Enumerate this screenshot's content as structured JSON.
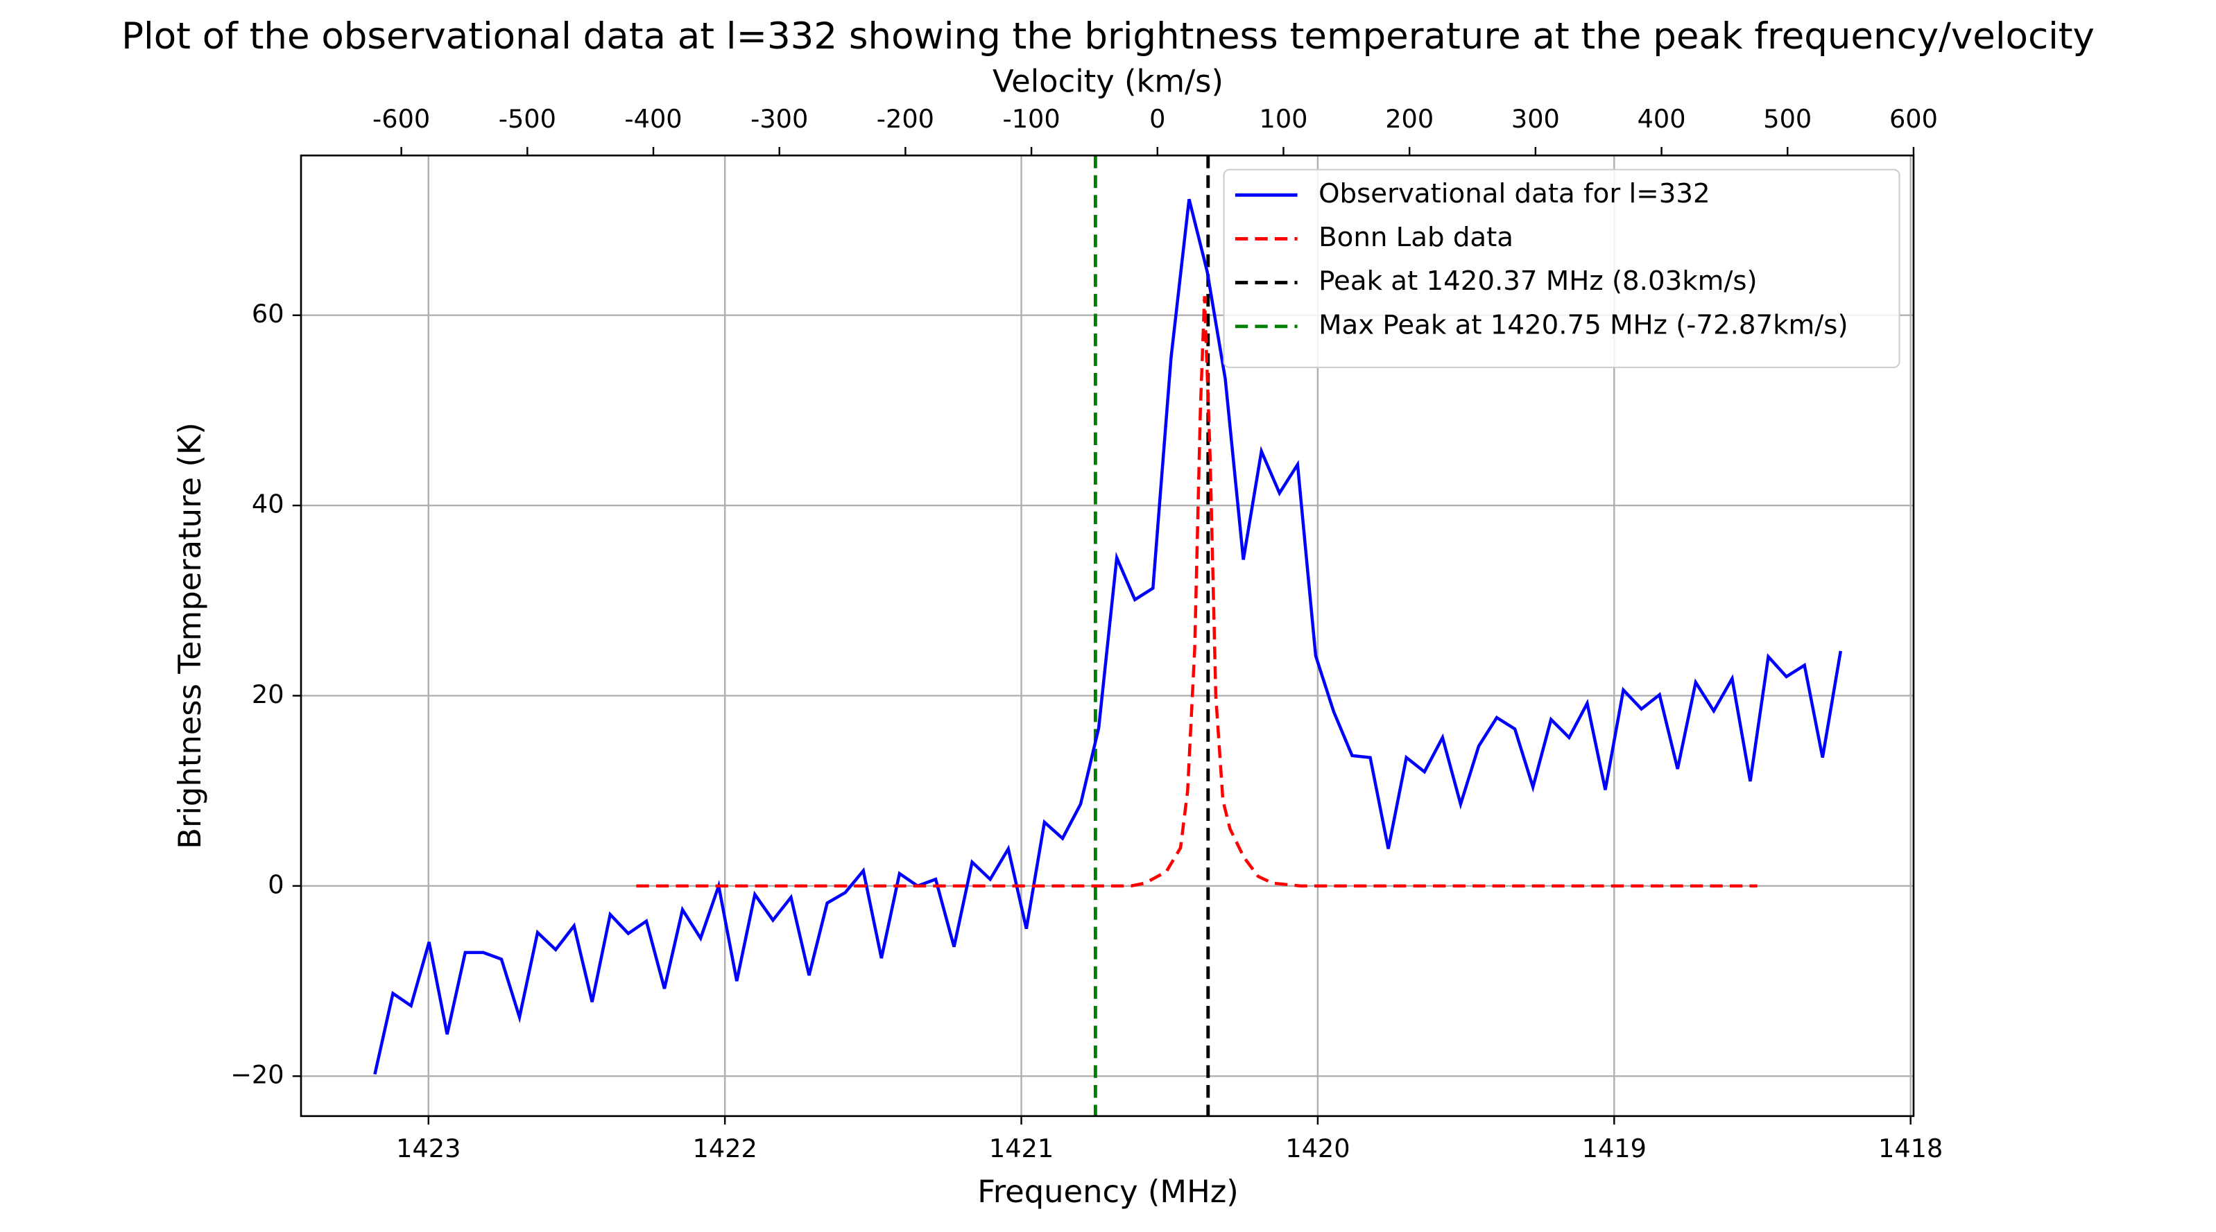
{
  "chart_data": {
    "type": "line",
    "title": "Plot of the observational data at l=332 showing the brightness temperature at the peak frequency/velocity",
    "xlabel": "Frequency (MHz)",
    "ylabel": "Brightness Temperature (K)",
    "x2label": "Velocity (km/s)",
    "xlim": [
      1423.43,
      1417.99
    ],
    "xticks": [
      1423,
      1422,
      1421,
      1420,
      1419,
      1418
    ],
    "x2lim": [
      -679.6,
      600
    ],
    "x2ticks": [
      -600,
      -500,
      -400,
      -300,
      -200,
      -100,
      0,
      100,
      200,
      300,
      400,
      500,
      600
    ],
    "ylim": [
      -24.2,
      76.8
    ],
    "yticks": [
      {
        "value": -20,
        "label": "−20"
      },
      0,
      20,
      40,
      60
    ],
    "grid": true,
    "legend": "upper right",
    "series": [
      {
        "name": "Observational data for l=332",
        "color": "#0000ff",
        "style": "solid",
        "x": [
          1423.181,
          1423.12,
          1423.059,
          1422.998,
          1422.937,
          1422.876,
          1422.815,
          1422.754,
          1422.693,
          1422.632,
          1422.571,
          1422.509,
          1422.448,
          1422.387,
          1422.326,
          1422.265,
          1422.204,
          1422.143,
          1422.082,
          1422.021,
          1421.96,
          1421.899,
          1421.838,
          1421.777,
          1421.716,
          1421.655,
          1421.594,
          1421.533,
          1421.472,
          1421.411,
          1421.35,
          1421.289,
          1421.227,
          1421.166,
          1421.105,
          1421.044,
          1420.983,
          1420.922,
          1420.861,
          1420.8,
          1420.739,
          1420.678,
          1420.617,
          1420.556,
          1420.495,
          1420.434,
          1420.373,
          1420.312,
          1420.251,
          1420.19,
          1420.129,
          1420.068,
          1420.007,
          1419.946,
          1419.884,
          1419.823,
          1419.762,
          1419.701,
          1419.64,
          1419.579,
          1419.518,
          1419.457,
          1419.396,
          1419.335,
          1419.274,
          1419.213,
          1419.152,
          1419.091,
          1419.03,
          1418.969,
          1418.908,
          1418.847,
          1418.786,
          1418.725,
          1418.664,
          1418.602,
          1418.541,
          1418.48,
          1418.419,
          1418.358,
          1418.297,
          1418.236
        ],
        "values": [
          -19.8,
          -11.3,
          -12.6,
          -5.9,
          -15.6,
          -7.0,
          -7.0,
          -7.7,
          -13.8,
          -4.9,
          -6.7,
          -4.2,
          -12.2,
          -3.0,
          -5.0,
          -3.7,
          -10.8,
          -2.5,
          -5.5,
          0.0,
          -10.0,
          -0.9,
          -3.6,
          -1.2,
          -9.4,
          -1.8,
          -0.7,
          1.6,
          -7.6,
          1.3,
          0.0,
          0.7,
          -6.4,
          2.5,
          0.7,
          3.9,
          -4.5,
          6.7,
          5.0,
          8.6,
          16.6,
          34.5,
          30.1,
          31.3,
          55.5,
          72.2,
          64.6,
          53.3,
          34.3,
          45.7,
          41.3,
          44.3,
          24.2,
          18.3,
          13.7,
          13.5,
          3.9,
          13.5,
          12.0,
          15.6,
          8.6,
          14.7,
          17.7,
          16.5,
          10.4,
          17.5,
          15.6,
          19.2,
          10.1,
          20.6,
          18.6,
          20.1,
          12.3,
          21.4,
          18.4,
          21.8,
          11.0,
          24.1,
          22.0,
          23.2,
          13.5,
          24.7
        ]
      },
      {
        "name": "Bonn Lab data",
        "color": "#ff0000",
        "style": "dashed",
        "x": [
          1422.299,
          1421.107,
          1420.63,
          1420.582,
          1420.511,
          1420.463,
          1420.439,
          1420.415,
          1420.396,
          1420.382,
          1420.363,
          1420.344,
          1420.32,
          1420.296,
          1420.249,
          1420.201,
          1420.153,
          1420.058,
          1418.517
        ],
        "values": [
          0,
          0,
          0,
          0.3,
          1.5,
          4,
          10,
          25,
          50,
          62,
          45,
          20,
          9,
          6,
          3,
          1,
          0.3,
          0,
          0
        ]
      }
    ],
    "vlines": [
      {
        "name": "Peak at 1420.37 MHz (8.03km/s)",
        "color": "#000000",
        "x": 1420.37
      },
      {
        "name": "Max Peak at 1420.75 MHz (-72.87km/s)",
        "color": "#008000",
        "x": 1420.75
      }
    ]
  }
}
